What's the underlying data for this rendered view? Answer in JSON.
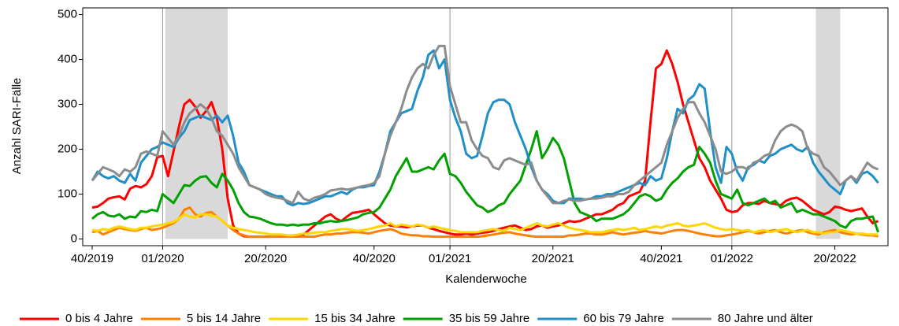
{
  "chart_data": {
    "type": "line",
    "y_label": "Anzahl SARI-Fälle",
    "x_label": "Kalenderwoche",
    "categories": [
      "40/2019",
      null,
      null,
      null,
      null,
      null,
      null,
      null,
      null,
      null,
      null,
      null,
      null,
      "01/2020",
      null,
      null,
      null,
      null,
      null,
      null,
      null,
      null,
      null,
      null,
      null,
      null,
      null,
      null,
      null,
      null,
      null,
      null,
      "20/2020",
      null,
      null,
      null,
      null,
      null,
      null,
      null,
      null,
      null,
      null,
      null,
      null,
      null,
      null,
      null,
      null,
      null,
      null,
      null,
      "40/2020",
      null,
      null,
      null,
      null,
      null,
      null,
      null,
      null,
      null,
      null,
      null,
      null,
      null,
      "01/2021",
      null,
      null,
      null,
      null,
      null,
      null,
      null,
      null,
      null,
      null,
      null,
      null,
      null,
      null,
      null,
      null,
      null,
      null,
      "20/2021",
      null,
      null,
      null,
      null,
      null,
      null,
      null,
      null,
      null,
      null,
      null,
      null,
      null,
      null,
      null,
      null,
      null,
      null,
      null,
      "40/2021",
      null,
      null,
      null,
      null,
      null,
      null,
      null,
      null,
      null,
      null,
      null,
      null,
      "01/2022",
      null,
      null,
      null,
      null,
      null,
      null,
      null,
      null,
      null,
      null,
      null,
      null,
      null,
      null,
      null,
      null,
      null,
      null,
      "20/2022",
      null,
      null,
      null,
      null,
      null,
      null,
      null,
      null
    ],
    "ylim": [
      -15,
      515
    ],
    "yticks": [
      0,
      100,
      200,
      300,
      400,
      500
    ],
    "year_lines": [
      "01/2020",
      "01/2021",
      "01/2022"
    ],
    "shaded_ranges": [
      [
        14,
        25
      ],
      [
        134,
        138
      ]
    ],
    "series": [
      {
        "name": "0 bis 4 Jahre",
        "color": "#ff0000",
        "values": [
          70,
          72,
          80,
          90,
          93,
          95,
          88,
          112,
          118,
          115,
          122,
          140,
          182,
          185,
          140,
          195,
          250,
          300,
          310,
          295,
          270,
          285,
          305,
          270,
          200,
          90,
          30,
          12,
          6,
          5,
          5,
          5,
          5,
          5,
          6,
          6,
          6,
          8,
          8,
          10,
          20,
          30,
          40,
          50,
          55,
          45,
          40,
          50,
          58,
          60,
          62,
          65,
          55,
          45,
          35,
          30,
          28,
          28,
          26,
          28,
          30,
          30,
          25,
          22,
          18,
          15,
          12,
          10,
          10,
          12,
          10,
          12,
          14,
          15,
          18,
          22,
          25,
          28,
          30,
          25,
          20,
          22,
          28,
          30,
          25,
          28,
          30,
          35,
          40,
          38,
          40,
          45,
          50,
          55,
          55,
          60,
          65,
          75,
          80,
          95,
          100,
          105,
          130,
          260,
          380,
          390,
          420,
          390,
          350,
          300,
          260,
          220,
          180,
          160,
          130,
          110,
          90,
          65,
          60,
          62,
          75,
          80,
          80,
          78,
          85,
          80,
          78,
          75,
          85,
          90,
          92,
          85,
          75,
          65,
          60,
          55,
          60,
          72,
          70,
          65,
          62,
          65,
          68,
          50,
          35,
          40
        ]
      },
      {
        "name": "5 bis 14 Jahre",
        "color": "#ff8000",
        "values": [
          15,
          18,
          10,
          15,
          20,
          25,
          22,
          20,
          18,
          22,
          25,
          20,
          22,
          25,
          30,
          35,
          45,
          65,
          70,
          55,
          50,
          58,
          60,
          50,
          40,
          30,
          20,
          12,
          8,
          5,
          5,
          5,
          5,
          5,
          5,
          5,
          5,
          5,
          5,
          5,
          5,
          5,
          8,
          10,
          10,
          12,
          12,
          14,
          15,
          15,
          14,
          12,
          15,
          18,
          20,
          22,
          18,
          12,
          10,
          8,
          8,
          6,
          6,
          5,
          5,
          5,
          5,
          5,
          5,
          5,
          5,
          5,
          6,
          8,
          10,
          12,
          14,
          15,
          12,
          10,
          8,
          6,
          5,
          5,
          5,
          5,
          5,
          5,
          8,
          8,
          10,
          12,
          12,
          10,
          10,
          12,
          15,
          12,
          10,
          12,
          14,
          15,
          18,
          15,
          14,
          12,
          15,
          18,
          20,
          20,
          18,
          15,
          12,
          10,
          8,
          6,
          6,
          8,
          10,
          12,
          15,
          18,
          15,
          12,
          15,
          18,
          20,
          15,
          12,
          15,
          18,
          20,
          15,
          12,
          10,
          15,
          18,
          20,
          15,
          12,
          10,
          12,
          10,
          8,
          8,
          6
        ]
      },
      {
        "name": "15 bis 34 Jahre",
        "color": "#ffd700",
        "values": [
          20,
          18,
          22,
          20,
          25,
          28,
          25,
          22,
          20,
          25,
          25,
          28,
          30,
          32,
          35,
          38,
          45,
          55,
          50,
          48,
          55,
          55,
          52,
          50,
          40,
          30,
          25,
          22,
          20,
          18,
          15,
          14,
          12,
          10,
          10,
          10,
          8,
          8,
          10,
          12,
          12,
          14,
          15,
          15,
          18,
          20,
          22,
          22,
          20,
          18,
          20,
          22,
          25,
          28,
          30,
          35,
          28,
          32,
          30,
          28,
          32,
          30,
          25,
          28,
          25,
          22,
          20,
          18,
          15,
          15,
          15,
          15,
          18,
          20,
          22,
          20,
          18,
          25,
          22,
          20,
          25,
          30,
          35,
          30,
          28,
          32,
          35,
          30,
          25,
          22,
          20,
          18,
          15,
          15,
          15,
          18,
          20,
          22,
          20,
          22,
          25,
          20,
          22,
          25,
          28,
          25,
          30,
          32,
          35,
          30,
          28,
          30,
          32,
          35,
          30,
          25,
          22,
          20,
          22,
          20,
          18,
          20,
          15,
          18,
          20,
          15,
          18,
          20,
          22,
          18,
          15,
          18,
          20,
          15,
          15,
          12,
          15,
          15,
          20,
          18,
          15,
          12,
          12,
          10,
          10,
          10
        ]
      },
      {
        "name": "35 bis 59 Jahre",
        "color": "#00a000",
        "values": [
          45,
          55,
          60,
          52,
          50,
          55,
          45,
          50,
          48,
          62,
          60,
          65,
          62,
          100,
          90,
          80,
          100,
          120,
          118,
          130,
          138,
          140,
          125,
          115,
          145,
          130,
          110,
          80,
          60,
          50,
          48,
          45,
          40,
          35,
          32,
          32,
          30,
          32,
          30,
          32,
          32,
          35,
          35,
          38,
          40,
          38,
          40,
          42,
          45,
          48,
          55,
          58,
          60,
          70,
          90,
          110,
          140,
          160,
          180,
          150,
          150,
          155,
          160,
          155,
          175,
          190,
          145,
          140,
          125,
          105,
          90,
          75,
          70,
          60,
          65,
          75,
          80,
          100,
          115,
          130,
          165,
          200,
          240,
          180,
          200,
          225,
          210,
          180,
          130,
          80,
          60,
          55,
          50,
          40,
          45,
          45,
          45,
          50,
          55,
          65,
          80,
          95,
          100,
          95,
          85,
          90,
          110,
          125,
          135,
          150,
          160,
          165,
          205,
          190,
          170,
          130,
          100,
          95,
          90,
          110,
          80,
          75,
          80,
          85,
          90,
          80,
          85,
          70,
          75,
          80,
          60,
          65,
          60,
          55,
          55,
          50,
          45,
          40,
          30,
          25,
          40,
          45,
          45,
          48,
          50,
          15
        ]
      },
      {
        "name": "60 bis 79 Jahre",
        "color": "#1f8fc8",
        "values": [
          130,
          150,
          140,
          135,
          140,
          130,
          125,
          145,
          130,
          170,
          185,
          200,
          205,
          215,
          210,
          205,
          225,
          240,
          265,
          270,
          275,
          270,
          265,
          275,
          260,
          275,
          230,
          170,
          150,
          120,
          115,
          110,
          105,
          100,
          95,
          95,
          80,
          75,
          80,
          78,
          80,
          85,
          90,
          95,
          95,
          100,
          105,
          100,
          110,
          115,
          115,
          118,
          120,
          150,
          190,
          240,
          260,
          280,
          285,
          290,
          330,
          360,
          410,
          420,
          380,
          400,
          310,
          270,
          240,
          190,
          180,
          185,
          230,
          280,
          305,
          310,
          310,
          300,
          260,
          230,
          200,
          160,
          130,
          110,
          100,
          85,
          80,
          80,
          90,
          90,
          90,
          88,
          90,
          95,
          95,
          100,
          100,
          105,
          110,
          115,
          120,
          125,
          120,
          140,
          130,
          135,
          180,
          240,
          290,
          280,
          310,
          320,
          345,
          335,
          240,
          160,
          125,
          205,
          190,
          150,
          130,
          160,
          165,
          175,
          170,
          185,
          190,
          200,
          205,
          210,
          200,
          195,
          205,
          170,
          150,
          135,
          120,
          110,
          100,
          130,
          140,
          125,
          145,
          150,
          140,
          125
        ]
      },
      {
        "name": "80 Jahre und älter",
        "color": "#8c8c8c",
        "values": [
          130,
          145,
          160,
          155,
          150,
          140,
          155,
          150,
          160,
          190,
          195,
          190,
          185,
          240,
          225,
          210,
          230,
          260,
          280,
          290,
          300,
          290,
          270,
          240,
          230,
          210,
          190,
          160,
          140,
          120,
          115,
          110,
          100,
          95,
          92,
          90,
          85,
          80,
          105,
          90,
          85,
          92,
          95,
          100,
          108,
          110,
          112,
          110,
          112,
          115,
          118,
          120,
          125,
          140,
          190,
          230,
          260,
          290,
          330,
          360,
          380,
          390,
          380,
          410,
          430,
          430,
          340,
          300,
          260,
          260,
          220,
          200,
          185,
          180,
          160,
          155,
          175,
          180,
          175,
          170,
          165,
          170,
          130,
          110,
          95,
          80,
          80,
          85,
          88,
          85,
          85,
          88,
          90,
          90,
          92,
          95,
          95,
          100,
          100,
          105,
          120,
          130,
          140,
          150,
          160,
          170,
          210,
          240,
          270,
          290,
          305,
          305,
          280,
          260,
          230,
          200,
          150,
          145,
          150,
          160,
          160,
          155,
          170,
          175,
          185,
          190,
          220,
          240,
          250,
          255,
          250,
          240,
          200,
          190,
          185,
          160,
          150,
          135,
          120,
          130,
          140,
          130,
          150,
          170,
          160,
          155
        ]
      }
    ]
  }
}
